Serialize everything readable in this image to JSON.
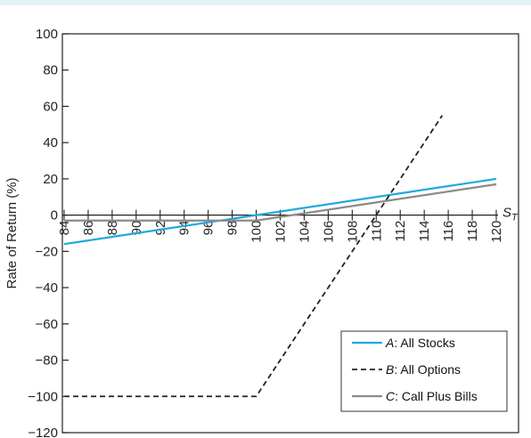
{
  "chart_data": {
    "type": "line",
    "title": "",
    "xlabel": "S_T",
    "xlabel_main": "S",
    "xlabel_sub": "T",
    "ylabel": "Rate of Return (%)",
    "xlim": [
      84,
      120
    ],
    "ylim": [
      -120,
      100
    ],
    "x_ticks": [
      84,
      86,
      88,
      90,
      92,
      94,
      96,
      98,
      100,
      102,
      104,
      106,
      108,
      110,
      112,
      114,
      116,
      118,
      120
    ],
    "y_ticks": [
      100,
      80,
      60,
      40,
      20,
      0,
      -20,
      -40,
      -60,
      -80,
      -100,
      -120
    ],
    "series": [
      {
        "name": "A: All Stocks",
        "letter": "A",
        "rest": ": All Stocks",
        "color": "#1fa8e0",
        "style": "solid",
        "points": [
          [
            84,
            -16
          ],
          [
            120,
            20
          ]
        ]
      },
      {
        "name": "B: All Options",
        "letter": "B",
        "rest": ": All Options",
        "color": "#222222",
        "style": "dashed",
        "points": [
          [
            84,
            -100
          ],
          [
            100,
            -100
          ],
          [
            115.5,
            55
          ]
        ]
      },
      {
        "name": "C: Call Plus Bills",
        "letter": "C",
        "rest": ": Call Plus Bills",
        "color": "#8a8a8a",
        "style": "solid",
        "points": [
          [
            84,
            -3
          ],
          [
            100,
            -3
          ],
          [
            120,
            17
          ]
        ]
      }
    ],
    "legend_position": "bottom-right",
    "grid": false
  }
}
